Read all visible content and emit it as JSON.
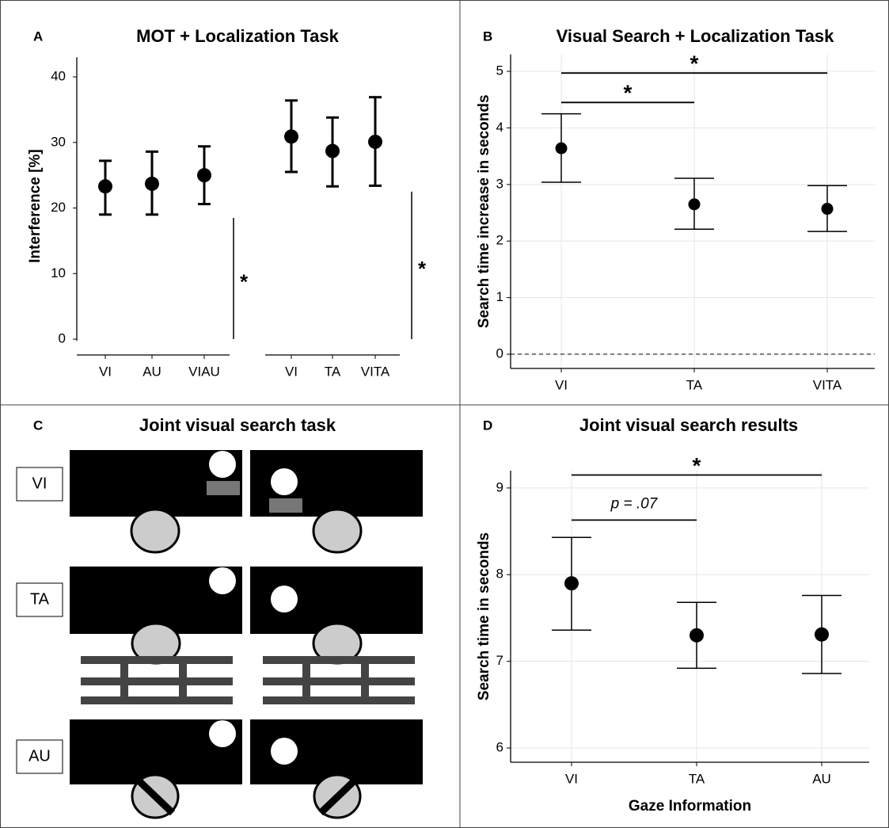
{
  "chart_data": [
    {
      "type": "errorbar",
      "panel": "A",
      "title": "MOT + Localization Task",
      "ylabel": "Interference [%]",
      "groups": [
        {
          "categories": [
            "VI",
            "AU",
            "VIAU"
          ],
          "values": [
            23.3,
            23.7,
            25.0
          ],
          "lower": [
            19.0,
            19.0,
            20.6
          ],
          "upper": [
            27.2,
            28.6,
            29.4
          ]
        },
        {
          "categories": [
            "VI",
            "TA",
            "VITA"
          ],
          "values": [
            30.9,
            28.7,
            30.1
          ],
          "lower": [
            25.5,
            23.3,
            23.4
          ],
          "upper": [
            36.4,
            33.8,
            36.9
          ]
        }
      ],
      "significance": [
        {
          "text": "*",
          "span": [
            0,
            18.5
          ]
        },
        {
          "text": "*",
          "span": [
            0,
            22.5
          ]
        }
      ],
      "ylim": [
        -1,
        43
      ],
      "yticks": [
        0,
        10,
        20,
        30,
        40
      ],
      "grid": false,
      "color": "#000000"
    },
    {
      "type": "errorbar",
      "panel": "B",
      "title": "Visual Search + Localization Task",
      "ylabel": "Search time increase in seconds",
      "categories": [
        "VI",
        "TA",
        "VITA"
      ],
      "values": [
        3.64,
        2.65,
        2.57
      ],
      "lower": [
        3.04,
        2.21,
        2.17
      ],
      "upper": [
        4.25,
        3.11,
        2.98
      ],
      "brackets": [
        {
          "from": 0,
          "to": 1,
          "y": 4.45,
          "text": "*"
        },
        {
          "from": 0,
          "to": 2,
          "y": 4.97,
          "text": "*"
        }
      ],
      "hline": 0,
      "ylim": [
        -0.25,
        5.3
      ],
      "yticks": [
        0,
        1,
        2,
        3,
        4,
        5
      ],
      "grid": true,
      "color": "#000000"
    },
    {
      "type": "errorbar",
      "panel": "D",
      "title": "Joint visual search results",
      "ylabel": "Search time in seconds",
      "xlabel": "Gaze Information",
      "categories": [
        "VI",
        "TA",
        "AU"
      ],
      "values": [
        7.9,
        7.3,
        7.31
      ],
      "lower": [
        7.36,
        6.92,
        6.86
      ],
      "upper": [
        8.43,
        7.68,
        7.76
      ],
      "brackets": [
        {
          "from": 0,
          "to": 1,
          "y": 8.63,
          "text": "p = .07"
        },
        {
          "from": 0,
          "to": 2,
          "y": 9.15,
          "text": "*"
        }
      ],
      "ylim": [
        5.84,
        9.2
      ],
      "yticks": [
        6,
        7,
        8,
        9
      ],
      "grid": true,
      "color": "#000000"
    }
  ],
  "diagram": {
    "panel": "C",
    "title": "Joint visual search task",
    "rows": [
      "VI",
      "TA",
      "AU"
    ]
  }
}
